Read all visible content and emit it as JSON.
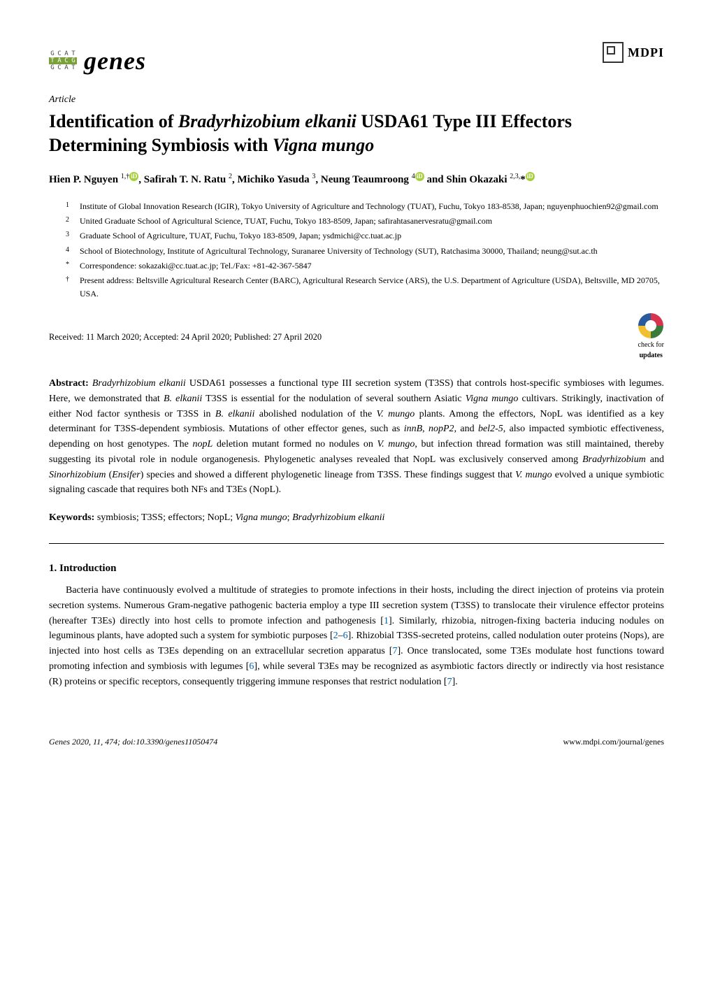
{
  "journal": {
    "name": "genes",
    "publisher": "MDPI",
    "logo_letters": [
      "G",
      "C",
      "A",
      "T",
      "T",
      "A",
      "C",
      "G",
      "G",
      "C",
      "A",
      "T"
    ],
    "logo_highlight_indices": [
      4,
      5,
      6,
      7
    ]
  },
  "article_type": "Article",
  "title_parts": {
    "pre": "Identification of ",
    "sp1": "Bradyrhizobium elkanii",
    "mid": " USDA61 Type III Effectors Determining Symbiosis with ",
    "sp2": "Vigna mungo"
  },
  "authors_html": "Hien P. Nguyen <sup>1,†</sup><span class='orcid'>iD</span>, Safirah T. N. Ratu <sup>2</sup>, Michiko Yasuda <sup>3</sup>, Neung Teaumroong <sup>4</sup><span class='orcid'>iD</span> and Shin Okazaki <sup>2,3,</sup>*<span class='orcid'>iD</span>",
  "affiliations": [
    {
      "num": "1",
      "text": "Institute of Global Innovation Research (IGIR), Tokyo University of Agriculture and Technology (TUAT), Fuchu, Tokyo 183-8538, Japan; nguyenphuochien92@gmail.com"
    },
    {
      "num": "2",
      "text": "United Graduate School of Agricultural Science, TUAT, Fuchu, Tokyo 183-8509, Japan; safirahtasanervesratu@gmail.com"
    },
    {
      "num": "3",
      "text": "Graduate School of Agriculture, TUAT, Fuchu, Tokyo 183-8509, Japan; ysdmichi@cc.tuat.ac.jp"
    },
    {
      "num": "4",
      "text": "School of Biotechnology, Institute of Agricultural Technology, Suranaree University of Technology (SUT), Ratchasima 30000, Thailand; neung@sut.ac.th"
    },
    {
      "num": "*",
      "text": "Correspondence: sokazaki@cc.tuat.ac.jp; Tel./Fax: +81-42-367-5847"
    },
    {
      "num": "†",
      "text": "Present address: Beltsville Agricultural Research Center (BARC), Agricultural Research Service (ARS), the U.S. Department of Agriculture (USDA), Beltsville, MD 20705, USA."
    }
  ],
  "dates_line": "Received: 11 March 2020; Accepted: 24 April 2020; Published: 27 April 2020",
  "check_updates": {
    "line1": "check for",
    "line2": "updates"
  },
  "abstract": {
    "label": "Abstract:",
    "text": " <span class='italic'>Bradyrhizobium elkanii</span> USDA61 possesses a functional type III secretion system (T3SS) that controls host-specific symbioses with legumes. Here, we demonstrated that <span class='italic'>B. elkanii</span> T3SS is essential for the nodulation of several southern Asiatic <span class='italic'>Vigna mungo</span> cultivars. Strikingly, inactivation of either Nod factor synthesis or T3SS in <span class='italic'>B. elkanii</span> abolished nodulation of the <span class='italic'>V. mungo</span> plants. Among the effectors, NopL was identified as a key determinant for T3SS-dependent symbiosis. Mutations of other effector genes, such as <span class='italic'>innB</span>, <span class='italic'>nopP2</span>, and <span class='italic'>bel2-5</span>, also impacted symbiotic effectiveness, depending on host genotypes. The <span class='italic'>nopL</span> deletion mutant formed no nodules on <span class='italic'>V. mungo</span>, but infection thread formation was still maintained, thereby suggesting its pivotal role in nodule organogenesis. Phylogenetic analyses revealed that NopL was exclusively conserved among <span class='italic'>Bradyrhizobium</span> and <span class='italic'>Sinorhizobium</span> (<span class='italic'>Ensifer</span>) species and showed a different phylogenetic lineage from T3SS. These findings suggest that <span class='italic'>V. mungo</span> evolved a unique symbiotic signaling cascade that requires both NFs and T3Es (NopL)."
  },
  "keywords": {
    "label": "Keywords:",
    "text": " symbiosis; T3SS; effectors; NopL; <span class='italic'>Vigna mungo</span>; <span class='italic'>Bradyrhizobium elkanii</span>"
  },
  "section": {
    "num": "1.",
    "title": "Introduction"
  },
  "body": "Bacteria have continuously evolved a multitude of strategies to promote infections in their hosts, including the direct injection of proteins via protein secretion systems. Numerous Gram-negative pathogenic bacteria employ a type III secretion system (T3SS) to translocate their virulence effector proteins (hereafter T3Es) directly into host cells to promote infection and pathogenesis [<a class='ref'>1</a>]. Similarly, rhizobia, nitrogen-fixing bacteria inducing nodules on leguminous plants, have adopted such a system for symbiotic purposes [<a class='ref'>2</a>–<a class='ref'>6</a>]. Rhizobial T3SS-secreted proteins, called nodulation outer proteins (Nops), are injected into host cells as T3Es depending on an extracellular secretion apparatus [<a class='ref'>7</a>]. Once translocated, some T3Es modulate host functions toward promoting infection and symbiosis with legumes [<a class='ref'>6</a>], while several T3Es may be recognized as asymbiotic factors directly or indirectly via host resistance (R) proteins or specific receptors, consequently triggering immune responses that restrict nodulation [<a class='ref'>7</a>].",
  "footer": {
    "left": "Genes 2020, 11, 474; doi:10.3390/genes11050474",
    "right": "www.mdpi.com/journal/genes"
  },
  "colors": {
    "orcid_bg": "#a6ce39",
    "logo_hl": "#7aa03a",
    "link": "#0066aa"
  }
}
